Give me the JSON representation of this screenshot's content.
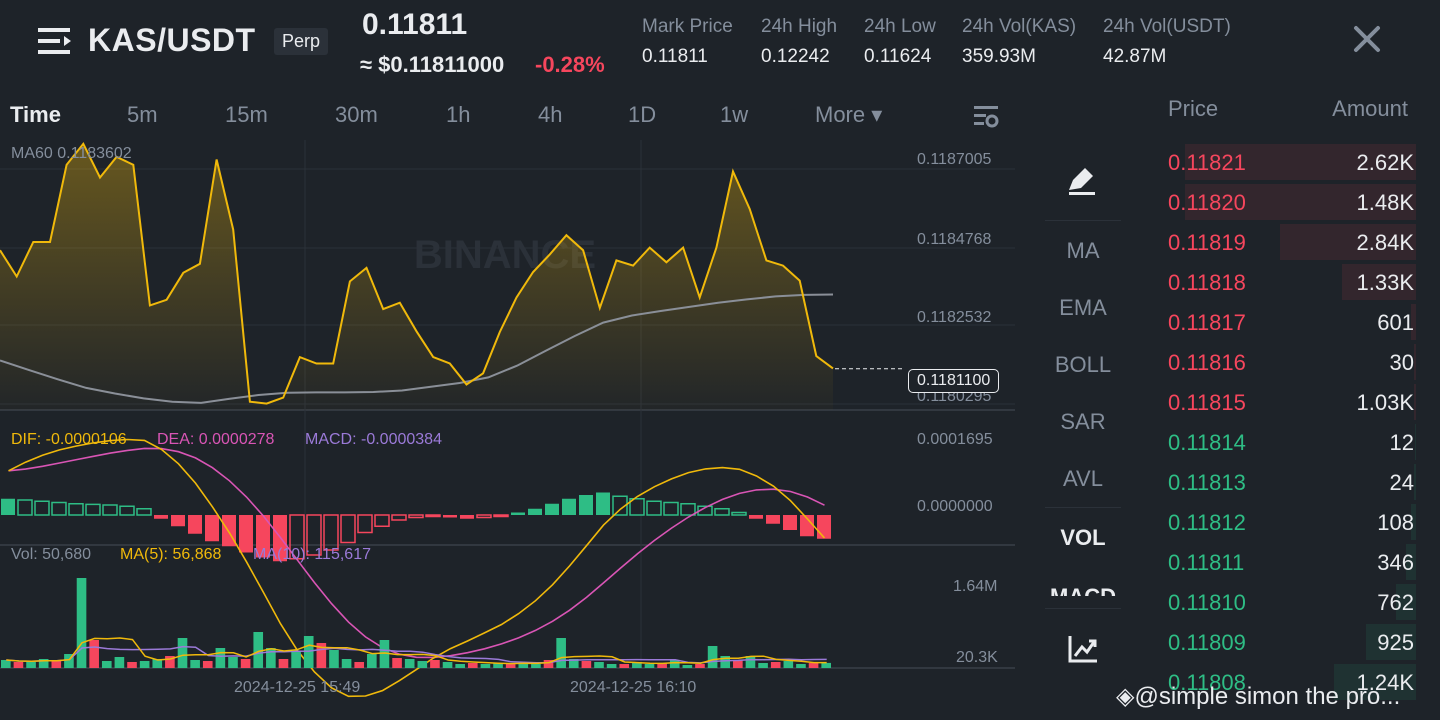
{
  "header": {
    "pair": "KAS/USDT",
    "contract_type": "Perp",
    "last_price": "0.11811",
    "usd_price": "≈ $0.11811000",
    "change": "-0.28%",
    "stats": [
      {
        "label": "Mark Price",
        "value": "0.11811"
      },
      {
        "label": "24h High",
        "value": "0.12242"
      },
      {
        "label": "24h Low",
        "value": "0.11624"
      },
      {
        "label": "24h Vol(KAS)",
        "value": "359.93M"
      },
      {
        "label": "24h Vol(USDT)",
        "value": "42.87M"
      }
    ],
    "icons": {
      "menu": "menu-icon",
      "close": "close-icon"
    }
  },
  "timeframes": {
    "items": [
      "Time",
      "5m",
      "15m",
      "30m",
      "1h",
      "4h",
      "1D",
      "1w",
      "More ▾"
    ],
    "active": "Time"
  },
  "chart": {
    "watermark": "BINANCE",
    "main": {
      "ma_label": "MA60 0.1183602",
      "y_ticks": [
        "0.1187005",
        "0.1184768",
        "0.1182532",
        "0.1180295"
      ],
      "current_price": "0.1181100"
    },
    "macd": {
      "dif": "DIF: -0.0000106",
      "dea": "DEA: 0.0000278",
      "macd": "MACD: -0.0000384",
      "y_ticks": [
        "0.0001695",
        "0.0000000"
      ]
    },
    "volume": {
      "vol": "Vol: 50,680",
      "ma5": "MA(5): 56,868",
      "ma10": "MA(10): 115,617",
      "y_ticks": [
        "1.64M",
        "20.3K"
      ]
    },
    "x_ticks": [
      "2024-12-25 15:49",
      "2024-12-25 16:10"
    ]
  },
  "chart_data": {
    "type": "line",
    "price_series": [
      0.118426,
      0.118356,
      0.118448,
      0.118448,
      0.118654,
      0.11871,
      0.11862,
      0.118675,
      0.118654,
      0.118279,
      0.118294,
      0.118366,
      0.11839,
      0.118668,
      0.118481,
      0.118022,
      0.118017,
      0.118033,
      0.118141,
      0.118124,
      0.118124,
      0.118343,
      0.118379,
      0.118269,
      0.118286,
      0.11821,
      0.118141,
      0.118124,
      0.118068,
      0.118098,
      0.118208,
      0.1183,
      0.118368,
      0.118415,
      0.118466,
      0.118426,
      0.118272,
      0.118399,
      0.118385,
      0.118433,
      0.118394,
      0.118433,
      0.1183,
      0.118433,
      0.118636,
      0.118536,
      0.118399,
      0.118385,
      0.118345,
      0.118144,
      0.118111
    ],
    "ma60_series": [
      0.118132,
      0.118107,
      0.118082,
      0.118059,
      0.118044,
      0.118031,
      0.118022,
      0.118019,
      0.11803,
      0.11804,
      0.118046,
      0.118047,
      0.118047,
      0.118048,
      0.118052,
      0.118062,
      0.118072,
      0.118087,
      0.118118,
      0.118158,
      0.118197,
      0.118233,
      0.118252,
      0.118264,
      0.118275,
      0.118286,
      0.118295,
      0.118303,
      0.118307,
      0.118308
    ],
    "ylim": [
      0.118,
      0.11872
    ],
    "current_price": 0.11811,
    "macd_hist": [
      2.6e-05,
      2.4e-05,
      2.2e-05,
      2e-05,
      1.8e-05,
      1.7e-05,
      1.6e-05,
      1.4e-05,
      1e-05,
      -6e-06,
      -1.8e-05,
      -3e-05,
      -4.2e-05,
      -5e-05,
      -6e-05,
      -6.8e-05,
      -7.4e-05,
      -7e-05,
      -6.4e-05,
      -5.6e-05,
      -4.4e-05,
      -2.8e-05,
      -1.8e-05,
      -8e-06,
      -4e-06,
      -2e-06,
      -4e-06,
      -6e-06,
      -4e-06,
      -2e-06,
      4e-06,
      1e-05,
      1.8e-05,
      2.6e-05,
      3.2e-05,
      3.6e-05,
      3e-05,
      2.6e-05,
      2.2e-05,
      2e-05,
      1.8e-05,
      1.4e-05,
      1e-05,
      4e-06,
      -6e-06,
      -1.4e-05,
      -2.4e-05,
      -3.4e-05,
      -3.8e-05
    ],
    "volume": [
      80,
      60,
      60,
      90,
      70,
      140,
      900,
      280,
      70,
      110,
      60,
      70,
      90,
      120,
      300,
      80,
      70,
      200,
      110,
      90,
      360,
      200,
      90,
      170,
      320,
      250,
      180,
      90,
      60,
      140,
      280,
      100,
      90,
      70,
      80,
      60,
      40,
      50,
      40,
      50,
      40,
      60,
      40,
      80,
      300,
      90,
      70,
      60,
      40,
      40,
      60,
      40,
      50,
      80,
      30,
      40,
      220,
      120,
      80,
      120,
      50,
      60,
      70,
      40,
      50,
      51
    ],
    "volume_unit": "K"
  },
  "indicators": {
    "items": [
      "MA",
      "EMA",
      "BOLL",
      "SAR",
      "AVL",
      "VOL",
      "MACD"
    ],
    "active": "VOL",
    "icons": [
      "draw-icon",
      "chart-settings-icon"
    ]
  },
  "orderbook": {
    "headers": {
      "price": "Price",
      "amount": "Amount"
    },
    "asks": [
      {
        "price": "0.11821",
        "amount": "2.62K",
        "depth": 0.93
      },
      {
        "price": "0.11820",
        "amount": "1.48K",
        "depth": 0.93
      },
      {
        "price": "0.11819",
        "amount": "2.84K",
        "depth": 0.55
      },
      {
        "price": "0.11818",
        "amount": "1.33K",
        "depth": 0.3
      },
      {
        "price": "0.11817",
        "amount": "601",
        "depth": 0.02
      },
      {
        "price": "0.11816",
        "amount": "30",
        "depth": 0.01
      },
      {
        "price": "0.11815",
        "amount": "1.03K",
        "depth": 0.01
      }
    ],
    "bids": [
      {
        "price": "0.11814",
        "amount": "12",
        "depth": 0.005
      },
      {
        "price": "0.11813",
        "amount": "24",
        "depth": 0.01
      },
      {
        "price": "0.11812",
        "amount": "108",
        "depth": 0.02
      },
      {
        "price": "0.11811",
        "amount": "346",
        "depth": 0.04
      },
      {
        "price": "0.11810",
        "amount": "762",
        "depth": 0.08
      },
      {
        "price": "0.11809",
        "amount": "925",
        "depth": 0.2
      },
      {
        "price": "0.11808",
        "amount": "1.24K",
        "depth": 0.33
      }
    ]
  },
  "watermark_handle": "@simple simon the pro...",
  "colors": {
    "background": "#1e2329",
    "up": "#2ebd85",
    "down": "#f6465d",
    "price_line": "#f0b90b",
    "ma60": "#8a8f98",
    "dea": "#d955b5",
    "macd_label": "#9b7ad8",
    "muted": "#848e9c"
  }
}
